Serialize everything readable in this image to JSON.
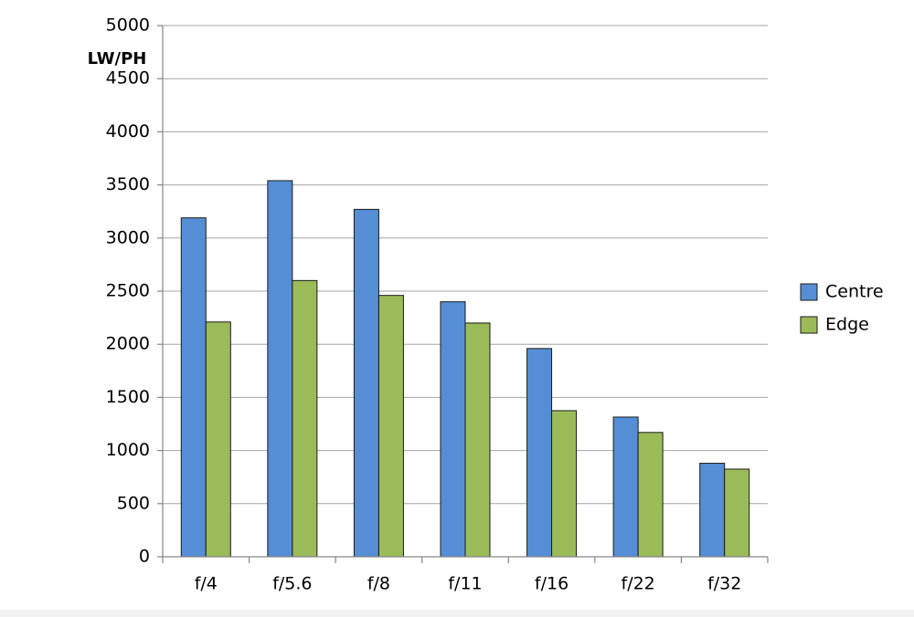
{
  "chart_data": {
    "type": "bar",
    "y_label": "LW/PH",
    "categories": [
      "f/4",
      "f/5.6",
      "f/8",
      "f/11",
      "f/16",
      "f/22",
      "f/32"
    ],
    "series": [
      {
        "name": "Centre",
        "color": "#558ed5",
        "values": [
          3190,
          3540,
          3270,
          2400,
          1960,
          1315,
          880
        ]
      },
      {
        "name": "Edge",
        "color": "#9bbb59",
        "values": [
          2210,
          2600,
          2460,
          2200,
          1375,
          1170,
          825
        ]
      }
    ],
    "ylim": [
      0,
      5000
    ],
    "yticks": [
      0,
      500,
      1000,
      1500,
      2000,
      2500,
      3000,
      3500,
      4000,
      4500,
      5000
    ],
    "grid": true,
    "legend": "right"
  }
}
